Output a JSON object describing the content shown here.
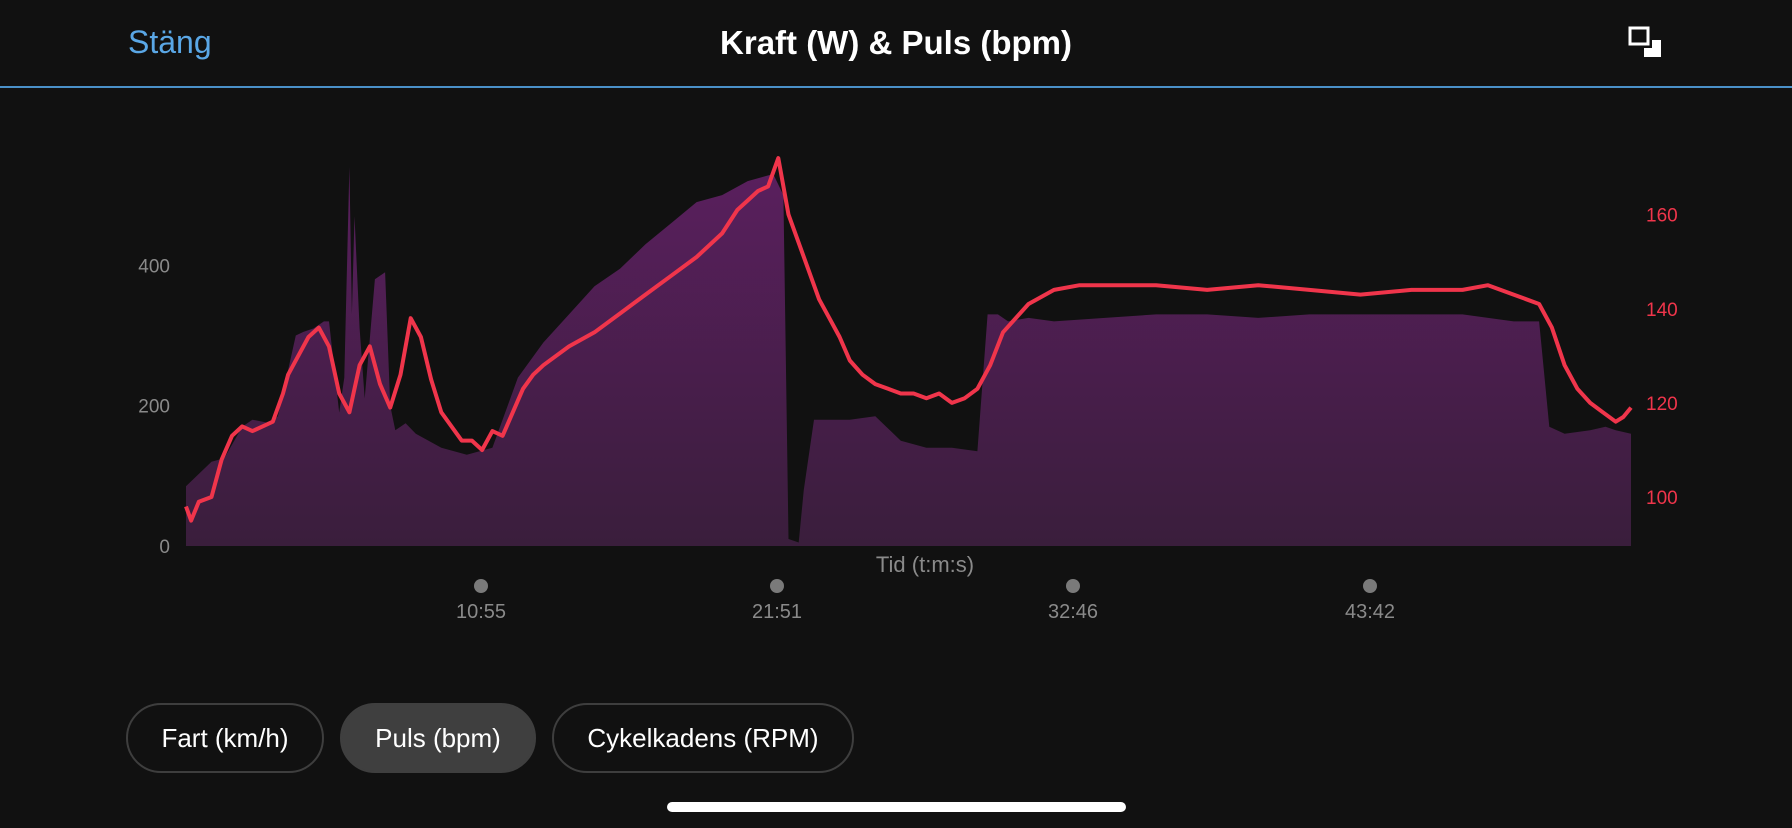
{
  "header": {
    "close_label": "Stäng",
    "title": "Kraft (W) & Puls (bpm)",
    "expand_icon": "expand-icon"
  },
  "colors": {
    "background": "#111111",
    "power_fill_top": "#5a1f5e",
    "power_fill_bottom": "#3a1e3c",
    "heart_rate_line": "#f0354b",
    "accent_link": "#5aa7e6",
    "divider": "#4a90c8"
  },
  "chart_data": {
    "type": "area",
    "xlabel": "Tid (t:m:s)",
    "x_tick_labels": [
      "10:55",
      "21:51",
      "32:46",
      "43:42"
    ],
    "left_axis": {
      "ticks": [
        0,
        200,
        400
      ],
      "ylim": [
        0,
        550
      ]
    },
    "right_axis": {
      "ticks": [
        100,
        120,
        140,
        160
      ],
      "ylim": [
        89.6,
        171.6
      ]
    },
    "grid": false,
    "series": [
      {
        "kind": "area",
        "axis": "left",
        "x": [
          0,
          1,
          1.5,
          2.2,
          2.6,
          3.3,
          3.6,
          4.3,
          4.6,
          5.0,
          5.4,
          5.6,
          6.0,
          6.2,
          6.4,
          6.5,
          6.6,
          6.8,
          7.0,
          7.4,
          7.8,
          8.0,
          8.2,
          8.4,
          8.6,
          9.0,
          10.0,
          11.0,
          12.0,
          13.0,
          14.0,
          15.0,
          16.0,
          17.0,
          18.0,
          19.0,
          20.0,
          21.0,
          22.0,
          23.0,
          23.4,
          23.6,
          24.0,
          24.2,
          24.6,
          25.0,
          26.0,
          27.0,
          28.0,
          29.0,
          30.0,
          31.0,
          31.4,
          31.8,
          32.2,
          33.0,
          34.0,
          36.0,
          38.0,
          40.0,
          42.0,
          44.0,
          46.0,
          48.0,
          50.0,
          52.0,
          53.0,
          53.4,
          54.0,
          55.0,
          55.6,
          56.0,
          56.6
        ],
        "values": [
          85,
          120,
          125,
          170,
          180,
          175,
          185,
          300,
          305,
          310,
          320,
          320,
          190,
          240,
          540,
          330,
          470,
          310,
          210,
          380,
          390,
          200,
          165,
          170,
          175,
          160,
          140,
          130,
          140,
          240,
          290,
          330,
          370,
          395,
          430,
          460,
          490,
          500,
          520,
          530,
          500,
          10,
          5,
          80,
          180,
          180,
          180,
          185,
          150,
          140,
          140,
          135,
          330,
          330,
          320,
          325,
          320,
          325,
          330,
          330,
          325,
          330,
          330,
          330,
          330,
          320,
          320,
          170,
          160,
          165,
          170,
          165,
          160
        ]
      },
      {
        "kind": "line",
        "axis": "right",
        "x": [
          0,
          0.2,
          0.5,
          1.0,
          1.4,
          1.8,
          2.2,
          2.6,
          3.0,
          3.4,
          3.8,
          4.0,
          4.4,
          4.8,
          5.2,
          5.6,
          6.0,
          6.4,
          6.8,
          7.2,
          7.6,
          8.0,
          8.4,
          8.8,
          9.2,
          9.6,
          10.0,
          10.4,
          10.8,
          11.2,
          11.6,
          12.0,
          12.4,
          12.8,
          13.2,
          13.6,
          14.0,
          15.0,
          16.0,
          17.0,
          18.0,
          19.0,
          20.0,
          21.0,
          21.6,
          22.0,
          22.4,
          22.8,
          23.2,
          23.6,
          24.0,
          24.4,
          24.8,
          25.2,
          25.6,
          26.0,
          26.5,
          27.0,
          27.5,
          28.0,
          28.5,
          29.0,
          29.5,
          30.0,
          30.5,
          31.0,
          31.5,
          32.0,
          33.0,
          34.0,
          35.0,
          36.0,
          38.0,
          40.0,
          42.0,
          44.0,
          46.0,
          48.0,
          50.0,
          51.0,
          52.0,
          53.0,
          53.5,
          54.0,
          54.5,
          55.0,
          55.5,
          56.0,
          56.3,
          56.6
        ],
        "values": [
          98,
          95,
          99,
          100,
          108,
          113,
          115,
          114,
          115,
          116,
          122,
          126,
          130,
          134,
          136,
          132,
          122,
          118,
          128,
          132,
          124,
          119,
          126,
          138,
          134,
          125,
          118,
          115,
          112,
          112,
          110,
          114,
          113,
          118,
          123,
          126,
          128,
          132,
          135,
          139,
          143,
          147,
          151,
          156,
          161,
          163,
          165,
          166,
          172,
          160,
          154,
          148,
          142,
          138,
          134,
          129,
          126,
          124,
          123,
          122,
          122,
          121,
          122,
          120,
          121,
          123,
          128,
          135,
          141,
          144,
          145,
          145,
          145,
          144,
          145,
          144,
          143,
          144,
          144,
          145,
          143,
          141,
          136,
          128,
          123,
          120,
          118,
          116,
          117,
          119
        ]
      }
    ]
  },
  "bottom_tabs": [
    {
      "label": "Fart (km/h)",
      "active": false
    },
    {
      "label": "Puls (bpm)",
      "active": true
    },
    {
      "label": "Cykelkadens (RPM)",
      "active": false
    }
  ]
}
